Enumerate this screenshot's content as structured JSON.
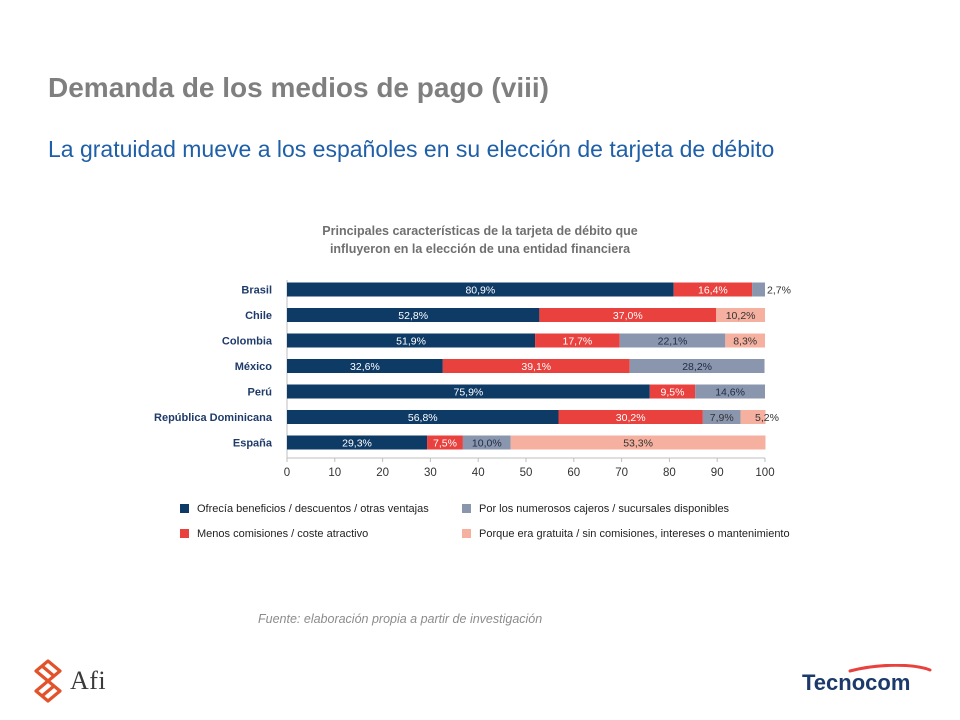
{
  "header": {
    "title": "Demanda de los medios de pago (viii)",
    "subtitle": "La gratuidad mueve a los españoles en su elección de tarjeta de débito"
  },
  "chart_data": {
    "type": "bar",
    "orientation": "horizontal",
    "stacked": true,
    "title_lines": [
      "Principales características de la tarjeta de débito que",
      "influyeron en la elección de una entidad financiera"
    ],
    "categories": [
      "Brasil",
      "Chile",
      "Colombia",
      "México",
      "Perú",
      "República Dominicana",
      "España"
    ],
    "xlim": [
      0,
      100
    ],
    "xticks": [
      0,
      10,
      20,
      30,
      40,
      50,
      60,
      70,
      80,
      90,
      100
    ],
    "series": [
      {
        "name": "Ofrecía beneficios / descuentos / otras ventajas",
        "color": "#0e3a66",
        "values": [
          80.9,
          52.8,
          51.9,
          32.6,
          75.9,
          56.8,
          29.3
        ],
        "labels": [
          "80,9%",
          "52,8%",
          "51,9%",
          "32,6%",
          "75,9%",
          "56,8%",
          "29,3%"
        ]
      },
      {
        "name": "Menos comisiones / coste atractivo",
        "color": "#e8413e",
        "values": [
          16.4,
          37.0,
          17.7,
          39.1,
          9.5,
          30.2,
          7.5
        ],
        "labels": [
          "16,4%",
          "37,0%",
          "17,7%",
          "39,1%",
          "9,5%",
          "30,2%",
          "7,5%"
        ]
      },
      {
        "name": "Por los numerosos cajeros / sucursales disponibles",
        "color": "#8a96ad",
        "values": [
          2.7,
          0,
          22.1,
          28.2,
          14.6,
          7.9,
          10.0
        ],
        "labels": [
          "2,7%",
          "",
          "22,1%",
          "28,2%",
          "14,6%",
          "7,9%",
          "10,0%"
        ]
      },
      {
        "name": "Porque era gratuita / sin comisiones, intereses o mantenimiento",
        "color": "#f5b0a0",
        "values": [
          0,
          10.2,
          8.3,
          0,
          0,
          5.2,
          53.3
        ],
        "labels": [
          "",
          "10,2%",
          "8,3%",
          "",
          "",
          "5,2%",
          "53,3%"
        ]
      }
    ]
  },
  "source": "Fuente: elaboración propia a partir de investigación",
  "logos": {
    "afi": "Afi",
    "tecnocom": "Tecnocom"
  }
}
